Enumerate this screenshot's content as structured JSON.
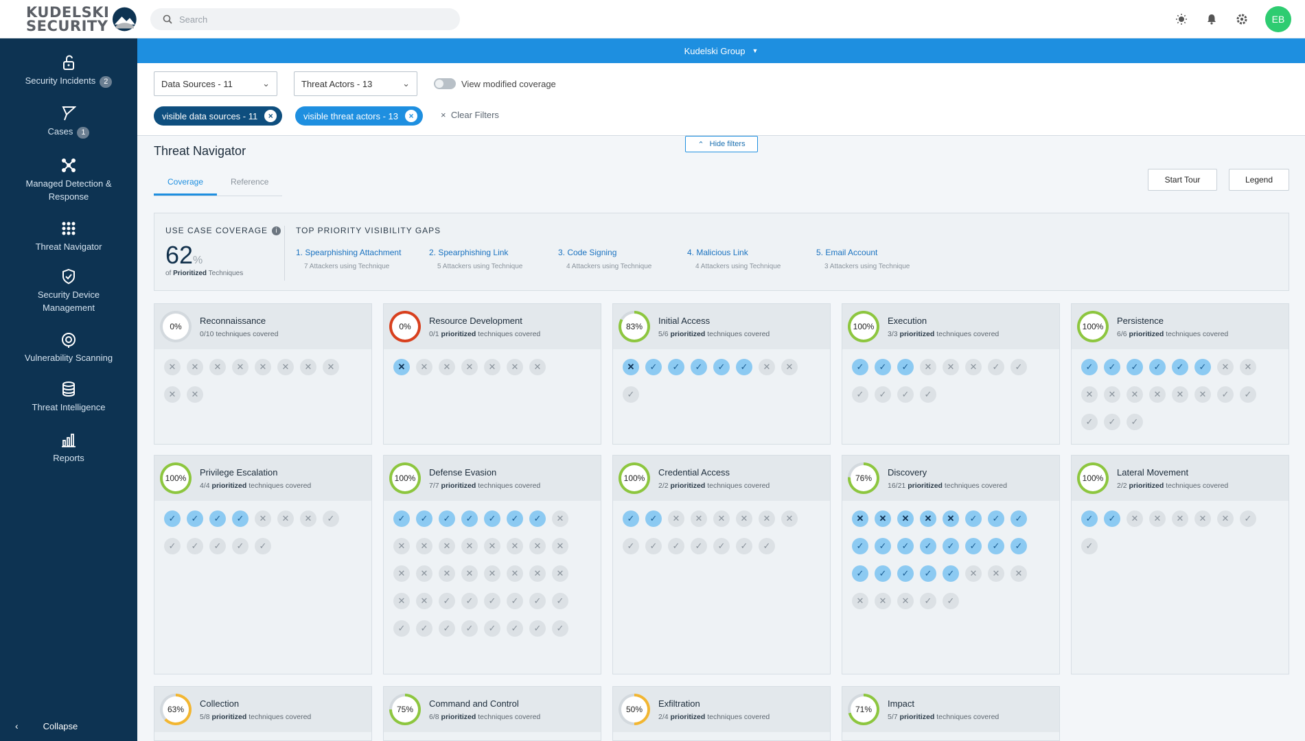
{
  "header": {
    "logo_line1": "KUDELSKI",
    "logo_line2": "SECURITY",
    "search_placeholder": "Search",
    "avatar_initials": "EB",
    "icons": [
      "sun-icon",
      "bell-icon",
      "gear-icon"
    ]
  },
  "sidebar": {
    "items": [
      {
        "label": "Security Incidents",
        "badge": "2",
        "icon": "lock-icon"
      },
      {
        "label": "Cases",
        "badge": "1",
        "icon": "flag-icon"
      },
      {
        "label": "Managed Detection & Response",
        "icon": "network-icon"
      },
      {
        "label": "Threat Navigator",
        "icon": "grid-icon"
      },
      {
        "label": "Security Device Management",
        "icon": "shield-icon"
      },
      {
        "label": "Vulnerability Scanning",
        "icon": "target-icon"
      },
      {
        "label": "Threat Intelligence",
        "icon": "database-icon"
      },
      {
        "label": "Reports",
        "icon": "bar-chart-icon"
      }
    ],
    "collapse_label": "Collapse"
  },
  "org": {
    "name": "Kudelski Group"
  },
  "filters": {
    "data_sources": "Data Sources - 11",
    "threat_actors": "Threat Actors - 13",
    "toggle_label": "View modified coverage",
    "chip_sources": "visible data sources - 11",
    "chip_actors": "visible threat actors - 13",
    "clear_label": "Clear Filters",
    "hide_label": "Hide filters"
  },
  "main": {
    "title": "Threat Navigator",
    "tabs": [
      "Coverage",
      "Reference"
    ],
    "start_tour": "Start Tour",
    "legend": "Legend"
  },
  "coverage": {
    "label": "USE CASE COVERAGE",
    "value": "62",
    "unit": "%",
    "sub_prefix": "of ",
    "sub_bold": "Prioritized",
    "sub_suffix": " Techniques",
    "gaps_label": "TOP PRIORITY VISIBILITY GAPS",
    "gaps": [
      {
        "title": "1. Spearphishing Attachment",
        "sub": "7 Attackers using Technique"
      },
      {
        "title": "2. Spearphishing Link",
        "sub": "5 Attackers using Technique"
      },
      {
        "title": "3. Code Signing",
        "sub": "4 Attackers using Technique"
      },
      {
        "title": "4. Malicious Link",
        "sub": "4 Attackers using Technique"
      },
      {
        "title": "5. Email Account",
        "sub": "3 Attackers using Technique"
      }
    ]
  },
  "tactics": [
    {
      "name": "Reconnaissance",
      "pct": "0%",
      "level": 0,
      "color": "#b8bfc6",
      "covered": "0/10",
      "prioritized": false,
      "techs": [
        "gx",
        "gx",
        "gx",
        "gx",
        "gx",
        "gx",
        "gx",
        "gx",
        "gx",
        "gx"
      ]
    },
    {
      "name": "Resource Development",
      "pct": "0%",
      "level": 0,
      "color": "#d8401e",
      "full_ring": true,
      "covered": "0/1",
      "prioritized": true,
      "techs": [
        "bx",
        "gx",
        "gx",
        "gx",
        "gx",
        "gx",
        "gx"
      ]
    },
    {
      "name": "Initial Access",
      "pct": "83%",
      "level": 83,
      "color": "#8dc63f",
      "covered": "5/6",
      "prioritized": true,
      "techs": [
        "bx",
        "bc",
        "bc",
        "bc",
        "bc",
        "bc",
        "gx",
        "gx",
        "gc"
      ]
    },
    {
      "name": "Execution",
      "pct": "100%",
      "level": 100,
      "color": "#8dc63f",
      "covered": "3/3",
      "prioritized": true,
      "techs": [
        "bc",
        "bc",
        "bc",
        "gx",
        "gx",
        "gx",
        "gc",
        "gc",
        "gc",
        "gc",
        "gc",
        "gc"
      ]
    },
    {
      "name": "Persistence",
      "pct": "100%",
      "level": 100,
      "color": "#8dc63f",
      "covered": "6/6",
      "prioritized": true,
      "techs": [
        "bc",
        "bc",
        "bc",
        "bc",
        "bc",
        "bc",
        "gx",
        "gx",
        "gx",
        "gx",
        "gx",
        "gx",
        "gx",
        "gx",
        "gc",
        "gc",
        "gc",
        "gc",
        "gc"
      ]
    },
    {
      "name": "Privilege Escalation",
      "pct": "100%",
      "level": 100,
      "color": "#8dc63f",
      "covered": "4/4",
      "prioritized": true,
      "techs": [
        "bc",
        "bc",
        "bc",
        "bc",
        "gx",
        "gx",
        "gx",
        "gc",
        "gc",
        "gc",
        "gc",
        "gc",
        "gc"
      ]
    },
    {
      "name": "Defense Evasion",
      "pct": "100%",
      "level": 100,
      "color": "#8dc63f",
      "covered": "7/7",
      "prioritized": true,
      "techs": [
        "bc",
        "bc",
        "bc",
        "bc",
        "bc",
        "bc",
        "bc",
        "gx",
        "gx",
        "gx",
        "gx",
        "gx",
        "gx",
        "gx",
        "gx",
        "gx",
        "gx",
        "gx",
        "gx",
        "gx",
        "gx",
        "gx",
        "gx",
        "gx",
        "gx",
        "gx",
        "gc",
        "gc",
        "gc",
        "gc",
        "gc",
        "gc",
        "gc",
        "gc",
        "gc",
        "gc",
        "gc",
        "gc",
        "gc",
        "gc"
      ]
    },
    {
      "name": "Credential Access",
      "pct": "100%",
      "level": 100,
      "color": "#8dc63f",
      "covered": "2/2",
      "prioritized": true,
      "techs": [
        "bc",
        "bc",
        "gx",
        "gx",
        "gx",
        "gx",
        "gx",
        "gx",
        "gc",
        "gc",
        "gc",
        "gc",
        "gc",
        "gc",
        "gc"
      ]
    },
    {
      "name": "Discovery",
      "pct": "76%",
      "level": 76,
      "color": "#8dc63f",
      "covered": "16/21",
      "prioritized": true,
      "techs": [
        "bx",
        "bx",
        "bx",
        "bx",
        "bx",
        "bc",
        "bc",
        "bc",
        "bc",
        "bc",
        "bc",
        "bc",
        "bc",
        "bc",
        "bc",
        "bc",
        "bc",
        "bc",
        "bc",
        "bc",
        "bc",
        "gx",
        "gx",
        "gx",
        "gx",
        "gx",
        "gx",
        "gc",
        "gc"
      ]
    },
    {
      "name": "Lateral Movement",
      "pct": "100%",
      "level": 100,
      "color": "#8dc63f",
      "covered": "2/2",
      "prioritized": true,
      "techs": [
        "bc",
        "bc",
        "gx",
        "gx",
        "gx",
        "gx",
        "gx",
        "gc",
        "gc"
      ]
    },
    {
      "name": "Collection",
      "pct": "63%",
      "level": 63,
      "color": "#f2b632",
      "covered": "5/8",
      "prioritized": true,
      "techs": []
    },
    {
      "name": "Command and Control",
      "pct": "75%",
      "level": 75,
      "color": "#8dc63f",
      "covered": "6/8",
      "prioritized": true,
      "techs": []
    },
    {
      "name": "Exfiltration",
      "pct": "50%",
      "level": 50,
      "color": "#f2b632",
      "covered": "2/4",
      "prioritized": true,
      "techs": []
    },
    {
      "name": "Impact",
      "pct": "71%",
      "level": 71,
      "color": "#8dc63f",
      "covered": "5/7",
      "prioritized": true,
      "techs": []
    }
  ],
  "tactic_sub_bold": "prioritized",
  "tactic_sub_tail": " techniques covered"
}
